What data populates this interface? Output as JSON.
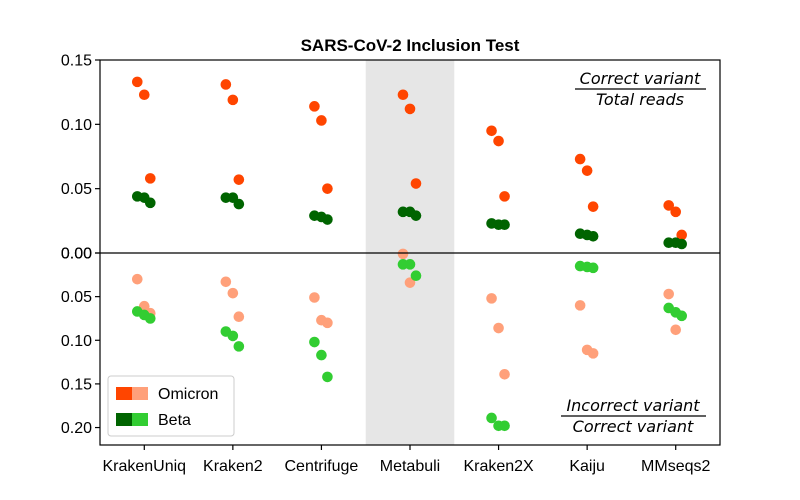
{
  "chart_data": {
    "type": "scatter",
    "title": "SARS-CoV-2 Inclusion Test",
    "categories": [
      "KrakenUniq",
      "Kraken2",
      "Centrifuge",
      "Metabuli",
      "Kraken2X",
      "Kaiju",
      "MMseqs2"
    ],
    "highlighted_category": "Metabuli",
    "top_panel": {
      "annotation_numerator": "Correct variant",
      "annotation_denominator": "Total reads",
      "ylim": [
        0,
        0.15
      ],
      "yticks": [
        "0.00",
        "0.05",
        "0.10",
        "0.15"
      ],
      "series": [
        {
          "group": "Omicron",
          "color": "#FF4500",
          "points": [
            {
              "category": "KrakenUniq",
              "values": [
                0.133,
                0.123,
                0.058
              ]
            },
            {
              "category": "Kraken2",
              "values": [
                0.131,
                0.119,
                0.057
              ]
            },
            {
              "category": "Centrifuge",
              "values": [
                0.114,
                0.103,
                0.05
              ]
            },
            {
              "category": "Metabuli",
              "values": [
                0.123,
                0.112,
                0.054
              ]
            },
            {
              "category": "Kraken2X",
              "values": [
                0.095,
                0.087,
                0.044
              ]
            },
            {
              "category": "Kaiju",
              "values": [
                0.073,
                0.064,
                0.036
              ]
            },
            {
              "category": "MMseqs2",
              "values": [
                0.037,
                0.032,
                0.014
              ]
            }
          ]
        },
        {
          "group": "Beta",
          "color": "#006400",
          "points": [
            {
              "category": "KrakenUniq",
              "values": [
                0.044,
                0.043,
                0.039
              ]
            },
            {
              "category": "Kraken2",
              "values": [
                0.043,
                0.043,
                0.038
              ]
            },
            {
              "category": "Centrifuge",
              "values": [
                0.029,
                0.028,
                0.026
              ]
            },
            {
              "category": "Metabuli",
              "values": [
                0.032,
                0.032,
                0.029
              ]
            },
            {
              "category": "Kraken2X",
              "values": [
                0.023,
                0.022,
                0.022
              ]
            },
            {
              "category": "Kaiju",
              "values": [
                0.015,
                0.014,
                0.013
              ]
            },
            {
              "category": "MMseqs2",
              "values": [
                0.008,
                0.008,
                0.007
              ]
            }
          ]
        }
      ]
    },
    "bottom_panel": {
      "annotation_numerator": "Incorrect variant",
      "annotation_denominator": "Correct variant",
      "ylim": [
        0,
        0.22
      ],
      "yticks": [
        "0.00",
        "0.05",
        "0.10",
        "0.15",
        "0.20"
      ],
      "series": [
        {
          "group": "Omicron",
          "color": "#FFA07A",
          "points": [
            {
              "category": "KrakenUniq",
              "values": [
                0.03,
                0.061,
                0.069
              ]
            },
            {
              "category": "Kraken2",
              "values": [
                0.033,
                0.046,
                0.073
              ]
            },
            {
              "category": "Centrifuge",
              "values": [
                0.051,
                0.077,
                0.08
              ]
            },
            {
              "category": "Metabuli",
              "values": [
                0.001,
                0.034
              ]
            },
            {
              "category": "Kraken2X",
              "values": [
                0.052,
                0.086,
                0.139
              ]
            },
            {
              "category": "Kaiju",
              "values": [
                0.06,
                0.111,
                0.115
              ]
            },
            {
              "category": "MMseqs2",
              "values": [
                0.047,
                0.088
              ]
            }
          ]
        },
        {
          "group": "Beta",
          "color": "#32CD32",
          "points": [
            {
              "category": "KrakenUniq",
              "values": [
                0.067,
                0.071,
                0.075
              ]
            },
            {
              "category": "Kraken2",
              "values": [
                0.09,
                0.095,
                0.107
              ]
            },
            {
              "category": "Centrifuge",
              "values": [
                0.102,
                0.117,
                0.142
              ]
            },
            {
              "category": "Metabuli",
              "values": [
                0.013,
                0.013,
                0.026
              ]
            },
            {
              "category": "Kraken2X",
              "values": [
                0.189,
                0.198,
                0.198
              ]
            },
            {
              "category": "Kaiju",
              "values": [
                0.015,
                0.016,
                0.017
              ]
            },
            {
              "category": "MMseqs2",
              "values": [
                0.063,
                0.068,
                0.072
              ]
            }
          ]
        }
      ]
    },
    "legend": {
      "placement": "bottom-left",
      "entries": [
        {
          "label": "Omicron",
          "colors": [
            "#FF4500",
            "#FFA07A"
          ]
        },
        {
          "label": "Beta",
          "colors": [
            "#006400",
            "#32CD32"
          ]
        }
      ]
    }
  }
}
